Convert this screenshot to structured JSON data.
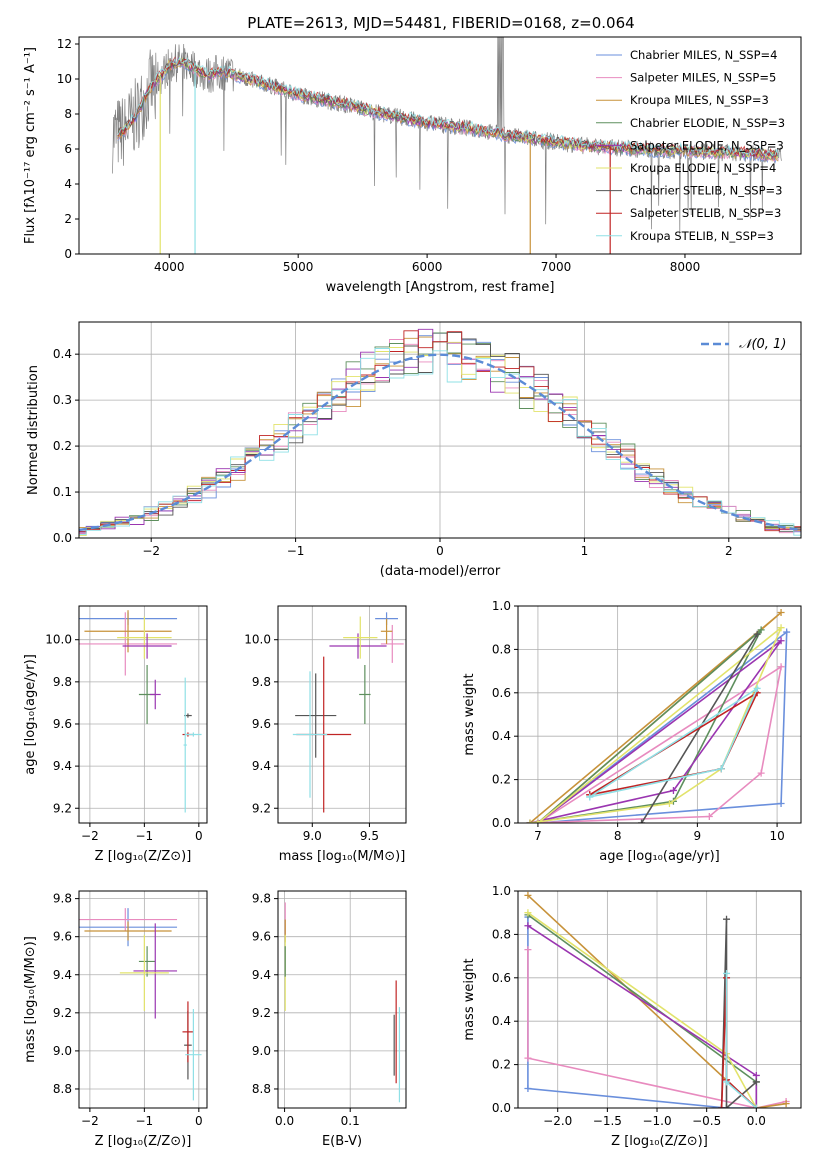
{
  "figure_title": "PLATE=2613, MJD=54481, FIBERID=0168, z=0.064",
  "colors": {
    "data": "#808080",
    "normal_curve": "#5b8bd6",
    "grid": "#b0b0b0",
    "series": [
      "#6a8fdc",
      "#e88bbf",
      "#c7923a",
      "#5e8f5e",
      "#9a35b0",
      "#e2e36b",
      "#555555",
      "#c02424",
      "#8fe0e6"
    ]
  },
  "chart_data": [
    {
      "id": "spectrum",
      "type": "line",
      "title": "PLATE=2613, MJD=54481, FIBERID=0168, z=0.064",
      "xlabel": "wavelength [Angstrom, rest frame]",
      "ylabel": "Flux [fλ10⁻¹⁷ erg cm⁻² s⁻¹ A⁻¹]",
      "xlim": [
        3300,
        8900
      ],
      "ylim": [
        0,
        12.4
      ],
      "xticks": [
        4000,
        5000,
        6000,
        7000,
        8000
      ],
      "yticks": [
        0,
        2,
        4,
        6,
        8,
        10,
        12
      ],
      "grid": false,
      "legend_position": "top-right",
      "legend": [
        "Chabrier MILES, N_SSP=4",
        "Salpeter MILES, N_SSP=5",
        "Kroupa MILES, N_SSP=3",
        "Chabrier ELODIE, N_SSP=3",
        "Salpeter ELODIE, N_SSP=3",
        "Kroupa ELODIE, N_SSP=4",
        "Chabrier STELIB, N_SSP=3",
        "Salpeter STELIB, N_SSP=3",
        "Kroupa STELIB, N_SSP=3"
      ],
      "continuum": {
        "x": [
          3560,
          3650,
          3750,
          3850,
          3950,
          4000,
          4100,
          4200,
          4300,
          4400,
          4500,
          4600,
          4800,
          5000,
          5200,
          5400,
          5600,
          5800,
          6000,
          6200,
          6400,
          6600,
          6800,
          7000,
          7200,
          7400,
          7600,
          7800,
          8000,
          8200,
          8400,
          8600,
          8750
        ],
        "y": [
          6.8,
          7.0,
          8.0,
          9.5,
          10.3,
          10.8,
          11.0,
          10.6,
          10.2,
          10.4,
          10.3,
          10.0,
          9.6,
          9.1,
          8.8,
          8.5,
          8.1,
          7.8,
          7.5,
          7.3,
          7.1,
          6.8,
          6.6,
          6.4,
          6.2,
          6.1,
          6.0,
          5.9,
          5.9,
          5.8,
          5.8,
          5.7,
          5.6
        ]
      },
      "model_dropouts": [
        {
          "x": 3930,
          "y": 0,
          "series": 5
        },
        {
          "x": 4200,
          "y": 0,
          "series": 8
        },
        {
          "x": 6800,
          "y": 0,
          "series": 2
        },
        {
          "x": 7420,
          "y": 0,
          "series": 7
        }
      ]
    },
    {
      "id": "residuals",
      "type": "histogram",
      "xlabel": "(data-model)/error",
      "ylabel": "Normed distribution",
      "xlim": [
        -2.5,
        2.5
      ],
      "ylim": [
        0,
        0.47
      ],
      "xticks": [
        -2,
        -1,
        0,
        1,
        2
      ],
      "yticks": [
        0,
        0.1,
        0.2,
        0.3,
        0.4
      ],
      "grid": true,
      "legend_position": "top-right",
      "legend": [
        "𝒩(0, 1)"
      ],
      "bin_width": 0.1,
      "normal_curve": {
        "mu": 0,
        "sigma": 1,
        "style": "dashed"
      }
    },
    {
      "id": "age-vs-Z",
      "type": "errorbar",
      "xlabel": "Z [log₁₀(Z/Z⊙)]",
      "ylabel": "age  [log₁₀(age/yr)]",
      "xlim": [
        -2.2,
        0.15
      ],
      "ylim": [
        9.13,
        10.16
      ],
      "xticks": [
        -2,
        -1,
        0
      ],
      "yticks": [
        9.2,
        9.4,
        9.6,
        9.8,
        10.0
      ],
      "grid": true,
      "points": [
        {
          "series": 0,
          "x": -1.3,
          "xerr": 0.9,
          "y": 10.1,
          "yerr": 0.03
        },
        {
          "series": 1,
          "x": -1.35,
          "xerr": 0.95,
          "y": 9.98,
          "yerr": 0.15
        },
        {
          "series": 2,
          "x": -1.3,
          "xerr": 0.8,
          "y": 10.04,
          "yerr": 0.1
        },
        {
          "series": 3,
          "x": -0.95,
          "xerr": 0.15,
          "y": 9.74,
          "yerr": 0.14
        },
        {
          "series": 4,
          "x": -0.8,
          "xerr": 0.1,
          "y": 9.74,
          "yerr": 0.07
        },
        {
          "series": 5,
          "x": -1.0,
          "xerr": 0.5,
          "y": 10.01,
          "yerr": 0.1
        },
        {
          "series": 6,
          "x": -0.2,
          "xerr": 0.07,
          "y": 9.64,
          "yerr": 0.01
        },
        {
          "series": 7,
          "x": -0.2,
          "xerr": 0.1,
          "y": 9.55,
          "yerr": 0.01
        },
        {
          "series": 8,
          "x": -0.1,
          "xerr": 0.15,
          "y": 9.55,
          "yerr": 0.01
        },
        {
          "series": 4,
          "x": -0.95,
          "xerr": 0.45,
          "y": 9.97,
          "yerr": 0.06
        },
        {
          "series": 8,
          "x": -0.25,
          "xerr": 0.03,
          "y": 9.5,
          "yerr": 0.32
        }
      ]
    },
    {
      "id": "age-vs-mass",
      "type": "errorbar",
      "xlabel": "mass [log₁₀(M/M⊙)]",
      "ylabel": "",
      "xlim": [
        8.7,
        9.82
      ],
      "ylim": [
        9.13,
        10.16
      ],
      "xticks": [
        9.0,
        9.5
      ],
      "yticks": [
        9.2,
        9.4,
        9.6,
        9.8,
        10.0
      ],
      "grid": true,
      "points": [
        {
          "series": 0,
          "x": 9.65,
          "xerr": 0.1,
          "y": 10.1,
          "yerr": 0.03
        },
        {
          "series": 1,
          "x": 9.7,
          "xerr": 0.1,
          "y": 9.98,
          "yerr": 0.09
        },
        {
          "series": 2,
          "x": 9.65,
          "xerr": 0.05,
          "y": 10.04,
          "yerr": 0.06
        },
        {
          "series": 3,
          "x": 9.46,
          "xerr": 0.05,
          "y": 9.74,
          "yerr": 0.14
        },
        {
          "series": 4,
          "x": 9.4,
          "xerr": 0.25,
          "y": 9.97,
          "yerr": 0.06
        },
        {
          "series": 5,
          "x": 9.42,
          "xerr": 0.15,
          "y": 10.01,
          "yerr": 0.1
        },
        {
          "series": 6,
          "x": 9.03,
          "xerr": 0.18,
          "y": 9.64,
          "yerr": 0.2
        },
        {
          "series": 7,
          "x": 9.1,
          "xerr": 0.24,
          "y": 9.55,
          "yerr": 0.37
        },
        {
          "series": 8,
          "x": 8.98,
          "xerr": 0.15,
          "y": 9.55,
          "yerr": 0.3
        }
      ]
    },
    {
      "id": "mass-weight-vs-age",
      "type": "line",
      "xlabel": "age  [log₁₀(age/yr)]",
      "ylabel": "mass weight",
      "xlim": [
        6.75,
        10.3
      ],
      "ylim": [
        0,
        1.0
      ],
      "xticks": [
        7,
        8,
        9,
        10
      ],
      "yticks": [
        0,
        0.2,
        0.4,
        0.6,
        0.8,
        1.0
      ],
      "grid": true,
      "series": [
        {
          "x": [
            7.0,
            10.05,
            10.12,
            7.0
          ],
          "y": [
            0.0,
            0.09,
            0.88,
            0.0
          ]
        },
        {
          "x": [
            6.9,
            9.15,
            9.8,
            10.05,
            7.0
          ],
          "y": [
            0.0,
            0.03,
            0.23,
            0.72,
            0.0
          ]
        },
        {
          "x": [
            6.9,
            10.05,
            7.0
          ],
          "y": [
            0.0,
            0.97,
            0.0
          ]
        },
        {
          "x": [
            6.9,
            8.7,
            9.8,
            7.0
          ],
          "y": [
            0.0,
            0.1,
            0.89,
            0.0
          ]
        },
        {
          "x": [
            6.9,
            8.7,
            10.05,
            7.0
          ],
          "y": [
            0.0,
            0.15,
            0.84,
            0.0
          ]
        },
        {
          "x": [
            6.9,
            8.65,
            9.3,
            10.05,
            7.0
          ],
          "y": [
            0.0,
            0.09,
            0.25,
            0.9,
            0.0
          ]
        },
        {
          "x": [
            8.3,
            9.75,
            8.3
          ],
          "y": [
            0.0,
            0.87,
            0.0
          ]
        },
        {
          "x": [
            7.65,
            9.3,
            9.75,
            7.65
          ],
          "y": [
            0.13,
            0.25,
            0.6,
            0.13
          ]
        },
        {
          "x": [
            7.65,
            9.3,
            9.75,
            7.65
          ],
          "y": [
            0.12,
            0.25,
            0.62,
            0.12
          ]
        }
      ]
    },
    {
      "id": "mass-vs-Z",
      "type": "errorbar",
      "xlabel": "Z [log₁₀(Z/Z⊙)]",
      "ylabel": "mass [log₁₀(M/M⊙)]",
      "xlim": [
        -2.2,
        0.15
      ],
      "ylim": [
        8.7,
        9.84
      ],
      "xticks": [
        -2,
        -1,
        0
      ],
      "yticks": [
        8.8,
        9.0,
        9.2,
        9.4,
        9.6,
        9.8
      ],
      "grid": true,
      "points": [
        {
          "series": 0,
          "x": -1.3,
          "xerr": 0.9,
          "y": 9.65,
          "yerr": 0.1
        },
        {
          "series": 1,
          "x": -1.35,
          "xerr": 0.95,
          "y": 9.69,
          "yerr": 0.06
        },
        {
          "series": 2,
          "x": -1.3,
          "xerr": 0.8,
          "y": 9.63,
          "yerr": 0.05
        },
        {
          "series": 3,
          "x": -0.95,
          "xerr": 0.15,
          "y": 9.47,
          "yerr": 0.08
        },
        {
          "series": 4,
          "x": -0.8,
          "xerr": 0.4,
          "y": 9.42,
          "yerr": 0.25
        },
        {
          "series": 5,
          "x": -1.0,
          "xerr": 0.45,
          "y": 9.41,
          "yerr": 0.2
        },
        {
          "series": 6,
          "x": -0.2,
          "xerr": 0.07,
          "y": 9.03,
          "yerr": 0.18
        },
        {
          "series": 7,
          "x": -0.2,
          "xerr": 0.1,
          "y": 9.1,
          "yerr": 0.16
        },
        {
          "series": 8,
          "x": -0.1,
          "xerr": 0.15,
          "y": 8.98,
          "yerr": 0.24
        }
      ]
    },
    {
      "id": "mass-vs-EBV",
      "type": "errorbar",
      "xlabel": "E(B-V)",
      "ylabel": "",
      "xlim": [
        -0.01,
        0.185
      ],
      "ylim": [
        8.7,
        9.84
      ],
      "xticks": [
        0.0,
        0.1
      ],
      "yticks": [
        8.8,
        9.0,
        9.2,
        9.4,
        9.6,
        9.8
      ],
      "grid": true,
      "points": [
        {
          "series": 1,
          "x": 0.001,
          "xerr": 0,
          "y": 9.68,
          "yerr": 0.1
        },
        {
          "series": 2,
          "x": 0.001,
          "xerr": 0,
          "y": 9.63,
          "yerr": 0.06
        },
        {
          "series": 5,
          "x": 0.001,
          "xerr": 0,
          "y": 9.41,
          "yerr": 0.2
        },
        {
          "series": 3,
          "x": 0.001,
          "xerr": 0,
          "y": 9.47,
          "yerr": 0.08
        },
        {
          "series": 6,
          "x": 0.167,
          "xerr": 0,
          "y": 9.03,
          "yerr": 0.16
        },
        {
          "series": 7,
          "x": 0.17,
          "xerr": 0,
          "y": 9.1,
          "yerr": 0.27
        },
        {
          "series": 8,
          "x": 0.175,
          "xerr": 0,
          "y": 8.98,
          "yerr": 0.25
        }
      ]
    },
    {
      "id": "mass-weight-vs-Z",
      "type": "line",
      "xlabel": "Z [log₁₀(Z/Z⊙)]",
      "ylabel": "mass weight",
      "xlim": [
        -2.4,
        0.45
      ],
      "ylim": [
        0,
        1.0
      ],
      "xticks": [
        -2.0,
        -1.5,
        -1.0,
        -0.5,
        0.0
      ],
      "yticks": [
        0,
        0.2,
        0.4,
        0.6,
        0.8,
        1.0
      ],
      "grid": true,
      "series": [
        {
          "x": [
            -2.3,
            -2.3,
            -0.3,
            0.0
          ],
          "y": [
            0.88,
            0.09,
            0.0,
            0.0
          ]
        },
        {
          "x": [
            -2.3,
            -2.3,
            0.0,
            0.3
          ],
          "y": [
            0.73,
            0.23,
            0.0,
            0.03
          ]
        },
        {
          "x": [
            -2.3,
            0.0,
            0.3
          ],
          "y": [
            0.98,
            0.0,
            0.02
          ]
        },
        {
          "x": [
            -2.3,
            0.0,
            0.0
          ],
          "y": [
            0.89,
            0.12,
            0.0
          ]
        },
        {
          "x": [
            -2.3,
            0.0,
            0.0
          ],
          "y": [
            0.84,
            0.15,
            0.0
          ]
        },
        {
          "x": [
            -2.3,
            -0.3,
            0.0
          ],
          "y": [
            0.9,
            0.25,
            0.0
          ]
        },
        {
          "x": [
            -0.35,
            -0.3,
            -0.3,
            0.0
          ],
          "y": [
            0.0,
            0.87,
            0.0,
            0.12
          ]
        },
        {
          "x": [
            -0.35,
            -0.3,
            -0.3,
            0.0
          ],
          "y": [
            0.0,
            0.6,
            0.13,
            0.0
          ]
        },
        {
          "x": [
            -0.3,
            -0.3,
            0.0
          ],
          "y": [
            0.62,
            0.12,
            0.0
          ]
        }
      ]
    }
  ]
}
